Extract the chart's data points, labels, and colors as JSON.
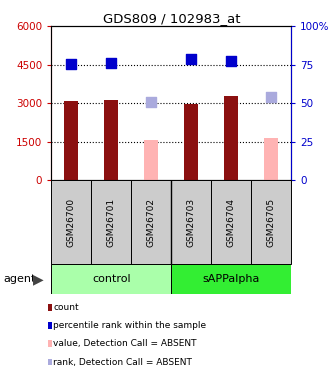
{
  "title": "GDS809 / 102983_at",
  "samples": [
    "GSM26700",
    "GSM26701",
    "GSM26702",
    "GSM26703",
    "GSM26704",
    "GSM26705"
  ],
  "groups": [
    "control",
    "control",
    "control",
    "sAPPalpha",
    "sAPPalpha",
    "sAPPalpha"
  ],
  "bar_values": [
    3100,
    3130,
    null,
    2970,
    3280,
    null
  ],
  "bar_colors_present": "#8b1010",
  "bar_colors_absent": "#ffb3b3",
  "absent_bar_values": [
    null,
    null,
    1560,
    null,
    null,
    1650
  ],
  "dot_values_all": [
    4530,
    4570,
    null,
    4720,
    4650,
    null
  ],
  "dot_colors_present": "#0000cc",
  "dot_colors_absent": "#aaaadd",
  "absent_dot_values": [
    null,
    null,
    3060,
    null,
    null,
    3250
  ],
  "absent_present_flags": [
    true,
    true,
    false,
    true,
    true,
    false
  ],
  "ylim_left": [
    0,
    6000
  ],
  "ylim_right": [
    0,
    100
  ],
  "yticks_left": [
    0,
    1500,
    3000,
    4500,
    6000
  ],
  "ytick_labels_left": [
    "0",
    "1500",
    "3000",
    "4500",
    "6000"
  ],
  "yticks_right": [
    0,
    25,
    50,
    75,
    100
  ],
  "ytick_labels_right": [
    "0",
    "25",
    "50",
    "75",
    "100%"
  ],
  "left_axis_color": "#cc0000",
  "right_axis_color": "#0000cc",
  "group_colors": {
    "control": "#aaffaa",
    "sAPPalpha": "#33ee33"
  },
  "legend_items": [
    {
      "label": "count",
      "color": "#8b1010"
    },
    {
      "label": "percentile rank within the sample",
      "color": "#0000cc"
    },
    {
      "label": "value, Detection Call = ABSENT",
      "color": "#ffb3b3"
    },
    {
      "label": "rank, Detection Call = ABSENT",
      "color": "#aaaadd"
    }
  ],
  "dot_size": 55,
  "bar_width": 0.5
}
